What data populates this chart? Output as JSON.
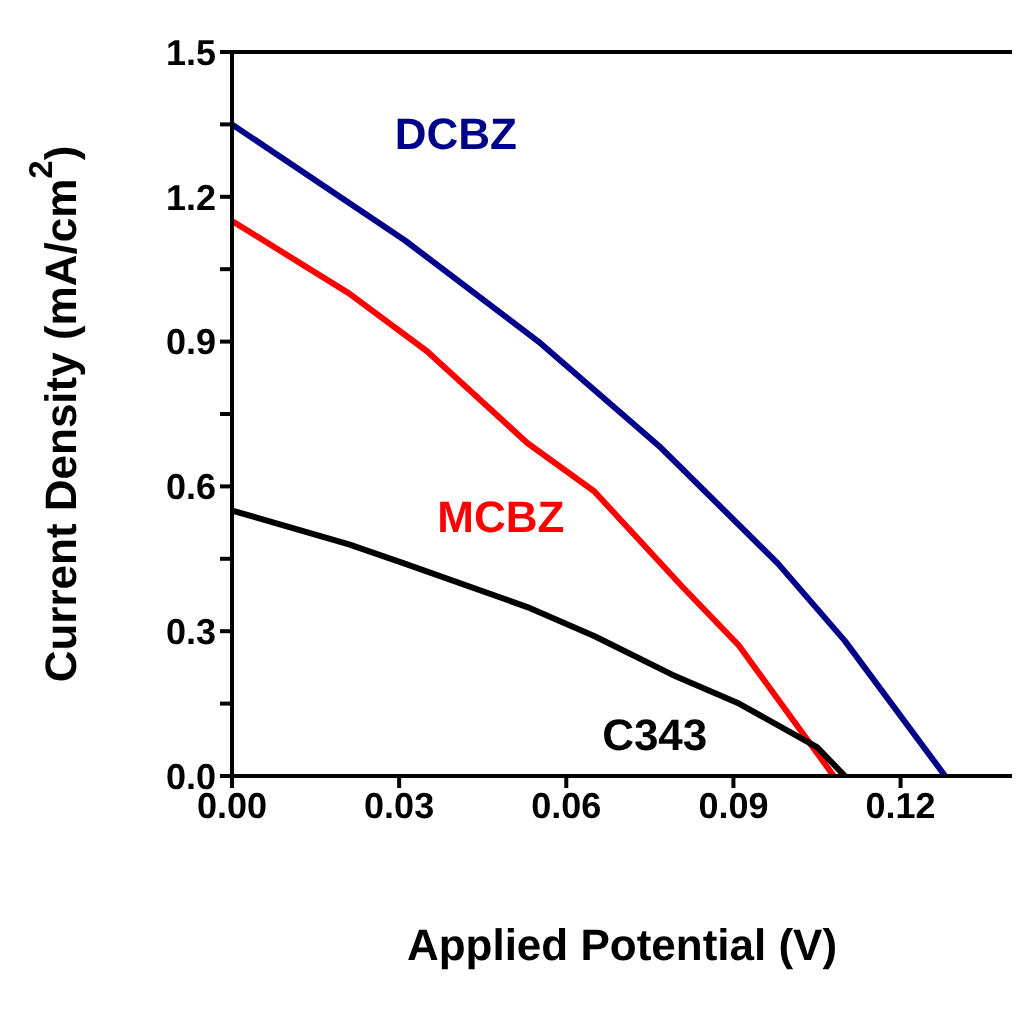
{
  "chart_data": {
    "type": "line",
    "xlabel": "Applied Potential (V)",
    "ylabel": "Current Density (mA/cm$^{2}$)",
    "xlim": [
      0,
      0.14
    ],
    "ylim": [
      0,
      1.5
    ],
    "xticks": [
      {
        "value": 0,
        "label": "0.00"
      },
      {
        "value": 0.03,
        "label": "0.03"
      },
      {
        "value": 0.06,
        "label": "0.06"
      },
      {
        "value": 0.09,
        "label": "0.09"
      },
      {
        "value": 0.12,
        "label": "0.12"
      }
    ],
    "yticks": [
      {
        "value": 0,
        "label": "0.0"
      },
      {
        "value": 0.15,
        "label": null
      },
      {
        "value": 0.3,
        "label": "0.3"
      },
      {
        "value": 0.45,
        "label": null
      },
      {
        "value": 0.6,
        "label": "0.6"
      },
      {
        "value": 0.75,
        "label": null
      },
      {
        "value": 0.9,
        "label": "0.9"
      },
      {
        "value": 1.05,
        "label": null
      },
      {
        "value": 1.2,
        "label": "1.2"
      },
      {
        "value": 1.35,
        "label": null
      },
      {
        "value": 1.5,
        "label": "1.5"
      }
    ],
    "marker": "none",
    "line_style": "solid",
    "series": [
      {
        "name": "DCBZ",
        "color": "#00008b",
        "x": [
          0,
          0.031,
          0.055,
          0.077,
          0.098,
          0.11,
          0.128
        ],
        "values": [
          1.35,
          1.11,
          0.9,
          0.68,
          0.44,
          0.28,
          0
        ]
      },
      {
        "name": "MCBZ",
        "color": "#ff0000",
        "x": [
          0,
          0.021,
          0.035,
          0.053,
          0.065,
          0.081,
          0.091,
          0.108
        ],
        "values": [
          1.15,
          1.0,
          0.88,
          0.69,
          0.59,
          0.39,
          0.27,
          0
        ]
      },
      {
        "name": "C343",
        "color": "#000000",
        "x": [
          0,
          0.021,
          0.031,
          0.053,
          0.065,
          0.079,
          0.091,
          0.105,
          0.11
        ],
        "values": [
          0.55,
          0.48,
          0.44,
          0.35,
          0.29,
          0.21,
          0.15,
          0.06,
          0
        ]
      }
    ]
  }
}
